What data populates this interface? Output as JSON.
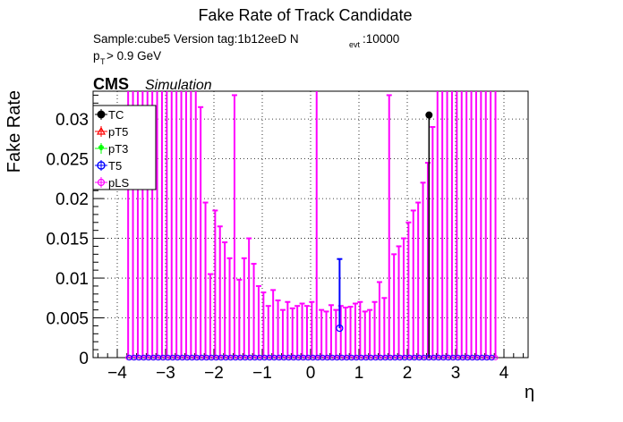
{
  "header": {
    "title": "Fake Rate of Track Candidate",
    "sample_line": "Sample:cube5   Version tag:1b12eeD  N",
    "nevt_sub": "evt",
    "nevt_value": ":10000",
    "pt_p": "p",
    "pt_sub": "T",
    "pt_rest": " > 0.9 GeV",
    "cms": "CMS",
    "simulation": "Simulation"
  },
  "legend": {
    "entries": [
      {
        "label": "TC",
        "color": "#000000",
        "marker": "filled-circle"
      },
      {
        "label": "pT5",
        "color": "#ff0000",
        "marker": "open-triangle"
      },
      {
        "label": "pT3",
        "color": "#00ff00",
        "marker": "open-cross"
      },
      {
        "label": "T5",
        "color": "#0000ff",
        "marker": "open-circle"
      },
      {
        "label": "pLS",
        "color": "#ff00ff",
        "marker": "open-star"
      }
    ]
  },
  "chart_data": {
    "type": "scatter",
    "title": "Fake Rate of Track Candidate",
    "xlabel": "η",
    "ylabel": "Fake Rate",
    "xlim": [
      -4.5,
      4.5
    ],
    "ylim": [
      0,
      0.0335
    ],
    "x_ticks": [
      -4,
      -3,
      -2,
      -1,
      0,
      1,
      2,
      3,
      4
    ],
    "x_tick_labels": [
      "−4",
      "−3",
      "−2",
      "−1",
      "0",
      "1",
      "2",
      "3",
      "4"
    ],
    "y_ticks": [
      0,
      0.005,
      0.01,
      0.015,
      0.02,
      0.025,
      0.03
    ],
    "y_tick_labels": [
      "0",
      "0.005",
      "0.01",
      "0.015",
      "0.02",
      "0.025",
      "0.03"
    ],
    "grid": true,
    "pls_bin_centers_eta": [
      -3.775,
      -3.675,
      -3.575,
      -3.475,
      -3.375,
      -3.275,
      -3.175,
      -3.075,
      -2.975,
      -2.875,
      -2.775,
      -2.675,
      -2.575,
      -2.475,
      -2.375,
      -2.275,
      -2.175,
      -2.075,
      -1.975,
      -1.875,
      -1.775,
      -1.675,
      -1.575,
      -1.475,
      -1.375,
      -1.275,
      -1.175,
      -1.075,
      -0.975,
      -0.875,
      -0.775,
      -0.675,
      -0.575,
      -0.475,
      -0.375,
      -0.275,
      -0.175,
      -0.075,
      0.025,
      0.125,
      0.225,
      0.325,
      0.425,
      0.525,
      0.625,
      0.725,
      0.825,
      0.925,
      1.025,
      1.125,
      1.225,
      1.325,
      1.425,
      1.525,
      1.625,
      1.725,
      1.825,
      1.925,
      2.025,
      2.125,
      2.225,
      2.325,
      2.425,
      2.525,
      2.625,
      2.725,
      2.825,
      2.925,
      3.025,
      3.125,
      3.225,
      3.325,
      3.425,
      3.525,
      3.625,
      3.725,
      3.825
    ],
    "pls_upper_error": [
      0.0335,
      0.0335,
      0.0335,
      0.0335,
      0.0335,
      0.0335,
      0.0335,
      0.0335,
      0.0335,
      0.0335,
      0.0335,
      0.0335,
      0.0335,
      0.0335,
      0.0335,
      0.0315,
      0.0195,
      0.0105,
      0.0185,
      0.0165,
      0.0145,
      0.0125,
      0.033,
      0.0098,
      0.0125,
      0.015,
      0.0118,
      0.009,
      0.0082,
      0.0065,
      0.0085,
      0.0072,
      0.006,
      0.007,
      0.0062,
      0.0065,
      0.0068,
      0.0065,
      0.007,
      0.0335,
      0.006,
      0.0058,
      0.0066,
      0.006,
      0.0065,
      0.0063,
      0.0064,
      0.0068,
      0.007,
      0.0058,
      0.006,
      0.007,
      0.0095,
      0.0075,
      0.033,
      0.013,
      0.014,
      0.015,
      0.017,
      0.0185,
      0.0195,
      0.022,
      0.0245,
      0.029,
      0.0335,
      0.0335,
      0.0335,
      0.0335,
      0.0335,
      0.0335,
      0.0335,
      0.0335,
      0.0335,
      0.0335,
      0.0335,
      0.0335,
      0.0335
    ],
    "tc_points": [
      {
        "x": 2.45,
        "y": 0.0305
      }
    ],
    "t5_points": [
      {
        "x": 0.6,
        "y": 0.0037,
        "err_up": 0.0124
      }
    ],
    "tc_error_bar": {
      "x": 2.45,
      "err_low": 0.0
    }
  }
}
